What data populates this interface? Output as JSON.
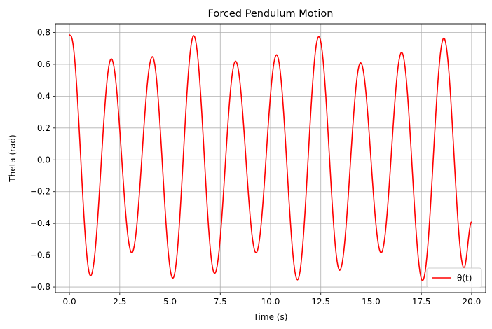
{
  "chart_data": {
    "type": "line",
    "title": "Forced Pendulum Motion",
    "xlabel": "Time (s)",
    "ylabel": "Theta (rad)",
    "xlim": [
      -0.7,
      20.7
    ],
    "ylim": [
      -0.835,
      0.855
    ],
    "x_ticks": [
      0.0,
      2.5,
      5.0,
      7.5,
      10.0,
      12.5,
      15.0,
      17.5,
      20.0
    ],
    "x_tick_labels": [
      "0.0",
      "2.5",
      "5.0",
      "7.5",
      "10.0",
      "12.5",
      "15.0",
      "17.5",
      "20.0"
    ],
    "y_ticks": [
      -0.8,
      -0.6,
      -0.4,
      -0.2,
      0.0,
      0.2,
      0.4,
      0.6,
      0.8
    ],
    "y_tick_labels": [
      "−0.8",
      "−0.6",
      "−0.4",
      "−0.2",
      "0.0",
      "0.2",
      "0.4",
      "0.6",
      "0.8"
    ],
    "grid": true,
    "legend_position": "lower-right",
    "series": [
      {
        "name": "θ(t)",
        "color": "#ff0000",
        "points": [
          [
            0.0,
            0.785
          ],
          [
            0.06,
            0.78
          ],
          [
            1.05,
            -0.73
          ],
          [
            2.08,
            0.635
          ],
          [
            3.1,
            -0.585
          ],
          [
            4.12,
            0.648
          ],
          [
            5.14,
            -0.745
          ],
          [
            6.18,
            0.78
          ],
          [
            7.22,
            -0.715
          ],
          [
            8.26,
            0.62
          ],
          [
            9.28,
            -0.585
          ],
          [
            10.3,
            0.66
          ],
          [
            11.34,
            -0.755
          ],
          [
            12.4,
            0.775
          ],
          [
            13.44,
            -0.695
          ],
          [
            14.48,
            0.61
          ],
          [
            15.5,
            -0.585
          ],
          [
            16.52,
            0.675
          ],
          [
            17.56,
            -0.76
          ],
          [
            18.62,
            0.765
          ],
          [
            19.62,
            -0.68
          ],
          [
            20.0,
            -0.39
          ]
        ]
      }
    ]
  }
}
